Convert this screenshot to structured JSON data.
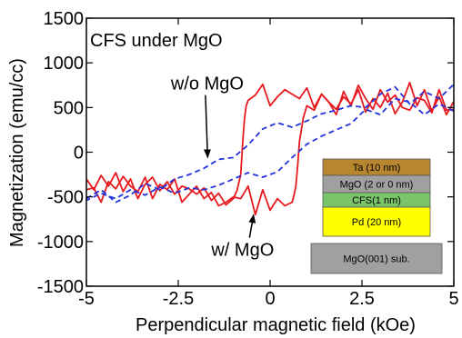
{
  "chart_data": {
    "type": "line",
    "title": "CFS under MgO",
    "xlabel": "Perpendicular magnetic field (kOe)",
    "ylabel": "Magnetization (emu/cc)",
    "xlim": [
      -5,
      5
    ],
    "ylim": [
      -1500,
      1500
    ],
    "xticks": [
      -5,
      -2.5,
      0,
      2.5,
      5
    ],
    "xtick_labels": [
      "-5",
      "-2.5",
      "0",
      "2.5",
      "5"
    ],
    "yticks": [
      -1500,
      -1000,
      -500,
      0,
      500,
      1000,
      1500
    ],
    "ytick_labels": [
      "-1500",
      "-1000",
      "-500",
      "0",
      "500",
      "1000",
      "1500"
    ],
    "grid": false,
    "annotations": [
      {
        "text": "w/o MgO",
        "x": -2.7,
        "y": 700,
        "arrow_to": [
          -1.7,
          -60
        ]
      },
      {
        "text": "w/ MgO",
        "x": -1.6,
        "y": -1160,
        "arrow_to": [
          -0.45,
          -700
        ]
      }
    ],
    "series": [
      {
        "color": "#e8191e",
        "style": "solid",
        "x": [
          -5,
          -4.8,
          -4.6,
          -4.4,
          -4.2,
          -4.0,
          -3.8,
          -3.6,
          -3.4,
          -3.2,
          -3.0,
          -2.8,
          -2.6,
          -2.4,
          -2.2,
          -2.0,
          -1.8,
          -1.6,
          -1.4,
          -1.2,
          -1.0,
          -0.9,
          -0.8,
          -0.75,
          -0.7,
          -0.65,
          -0.6,
          -0.4,
          -0.2,
          0.0,
          0.2,
          0.4,
          0.6,
          0.8,
          1.0,
          1.2,
          1.4,
          1.6,
          1.8,
          2.0,
          2.2,
          2.4,
          2.6,
          2.8,
          3.0,
          3.2,
          3.4,
          3.6,
          3.8,
          4.0,
          4.2,
          4.4,
          4.6,
          4.8,
          5.0
        ],
        "y": [
          -300,
          -420,
          -260,
          -380,
          -230,
          -440,
          -300,
          -520,
          -360,
          -280,
          -430,
          -330,
          -470,
          -380,
          -410,
          -470,
          -400,
          -540,
          -460,
          -590,
          -520,
          -430,
          -250,
          80,
          360,
          520,
          580,
          640,
          760,
          520,
          620,
          700,
          650,
          600,
          720,
          500,
          650,
          560,
          420,
          680,
          520,
          750,
          600,
          480,
          700,
          560,
          640,
          500,
          470,
          610,
          580,
          440,
          700,
          470,
          480
        ]
      },
      {
        "color": "#e8191e",
        "style": "solid",
        "x": [
          5.0,
          4.8,
          4.6,
          4.4,
          4.2,
          4.0,
          3.8,
          3.6,
          3.4,
          3.2,
          3.0,
          2.8,
          2.6,
          2.4,
          2.2,
          2.0,
          1.8,
          1.6,
          1.4,
          1.2,
          1.0,
          0.9,
          0.8,
          0.75,
          0.7,
          0.65,
          0.6,
          0.4,
          0.2,
          0.0,
          -0.2,
          -0.4,
          -0.6,
          -0.8,
          -1.0,
          -1.2,
          -1.4,
          -1.6,
          -1.8,
          -2.0,
          -2.2,
          -2.4,
          -2.6,
          -2.8,
          -3.0,
          -3.2,
          -3.4,
          -3.6,
          -3.8,
          -4.0,
          -4.2,
          -4.4,
          -4.6,
          -4.8,
          -5.0
        ],
        "y": [
          570,
          420,
          620,
          460,
          700,
          520,
          780,
          560,
          430,
          660,
          500,
          600,
          450,
          700,
          540,
          620,
          480,
          560,
          650,
          470,
          520,
          380,
          120,
          -150,
          -380,
          -480,
          -560,
          -600,
          -520,
          -650,
          -420,
          -700,
          -380,
          -520,
          -500,
          -560,
          -600,
          -450,
          -520,
          -380,
          -470,
          -560,
          -300,
          -420,
          -360,
          -520,
          -280,
          -440,
          -380,
          -270,
          -410,
          -330,
          -560,
          -400,
          -420
        ]
      },
      {
        "color": "#2233dd",
        "style": "dashed",
        "x": [
          -5,
          -4.6,
          -4.2,
          -3.8,
          -3.4,
          -3.0,
          -2.6,
          -2.2,
          -1.8,
          -1.4,
          -1.0,
          -0.6,
          -0.2,
          0.2,
          0.6,
          1.0,
          1.4,
          1.8,
          2.2,
          2.6,
          3.0,
          3.4,
          3.8,
          4.2,
          4.6,
          5.0
        ],
        "y": [
          -520,
          -420,
          -560,
          -480,
          -350,
          -420,
          -300,
          -250,
          -180,
          -80,
          -60,
          80,
          260,
          330,
          280,
          350,
          430,
          470,
          520,
          500,
          650,
          730,
          540,
          680,
          600,
          760
        ]
      },
      {
        "color": "#2233dd",
        "style": "dashed",
        "x": [
          5.0,
          4.6,
          4.2,
          3.8,
          3.4,
          3.0,
          2.6,
          2.2,
          1.8,
          1.4,
          1.0,
          0.6,
          0.2,
          -0.2,
          -0.6,
          -1.0,
          -1.4,
          -1.8,
          -2.2,
          -2.6,
          -3.0,
          -3.4,
          -3.8,
          -4.2,
          -4.6,
          -5.0
        ],
        "y": [
          460,
          540,
          420,
          560,
          600,
          420,
          480,
          320,
          250,
          180,
          90,
          -60,
          -220,
          -280,
          -230,
          -300,
          -370,
          -420,
          -400,
          -460,
          -390,
          -480,
          -420,
          -520,
          -460,
          -540
        ]
      }
    ]
  },
  "inset": {
    "layers": [
      {
        "label": "Ta (10 nm)",
        "color": "#b8862e"
      },
      {
        "label": "MgO (2 or 0 nm)",
        "color": "#a0a0a0"
      },
      {
        "label": "CFS(1 nm)",
        "color": "#7ac46a"
      },
      {
        "label": "Pd (20 nm)",
        "color": "#ffff00"
      },
      {
        "label": "MgO(001) sub.",
        "color": "#a0a0a0"
      }
    ]
  }
}
